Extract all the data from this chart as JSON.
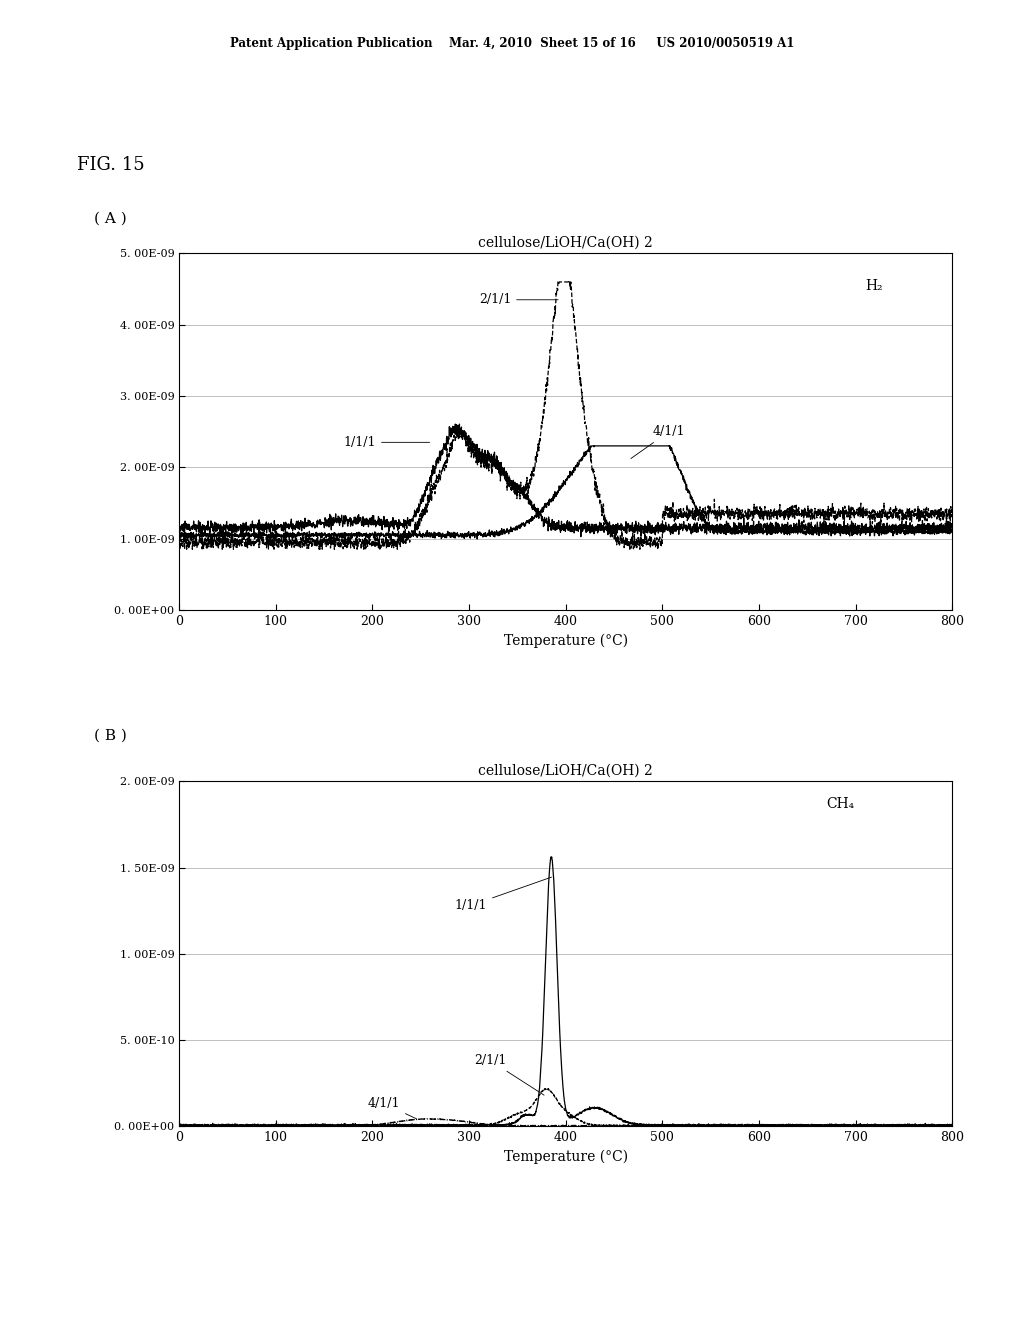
{
  "header_text": "Patent Application Publication    Mar. 4, 2010  Sheet 15 of 16     US 2010/0050519 A1",
  "fig_label": "FIG. 15",
  "panel_A_label": "( A )",
  "panel_B_label": "( B )",
  "title_A": "cellulose/LiOH/Ca(OH) 2",
  "title_B": "cellulose/LiOH/Ca(OH) 2",
  "gas_A": "H₂",
  "gas_B": "CH₄",
  "xlabel": "Temperature (°C)",
  "xlim": [
    0,
    800
  ],
  "ylim_A": [
    0,
    5e-09
  ],
  "ylim_B": [
    0,
    2e-09
  ],
  "yticks_A": [
    0,
    1e-09,
    2e-09,
    3e-09,
    4e-09,
    5e-09
  ],
  "ytick_labels_A": [
    "0. 00E+00",
    "1. 00E-09",
    "2. 00E-09",
    "3. 00E-09",
    "4. 00E-09",
    "5. 00E-09"
  ],
  "yticks_B": [
    0,
    5e-10,
    1e-09,
    1.5e-09,
    2e-09
  ],
  "ytick_labels_B": [
    "0. 00E+00",
    "5. 00E-10",
    "1. 00E-09",
    "1. 50E-09",
    "2. 00E-09"
  ],
  "xticks": [
    0,
    100,
    200,
    300,
    400,
    500,
    600,
    700,
    800
  ],
  "background_color": "#ffffff",
  "line_color": "#000000"
}
